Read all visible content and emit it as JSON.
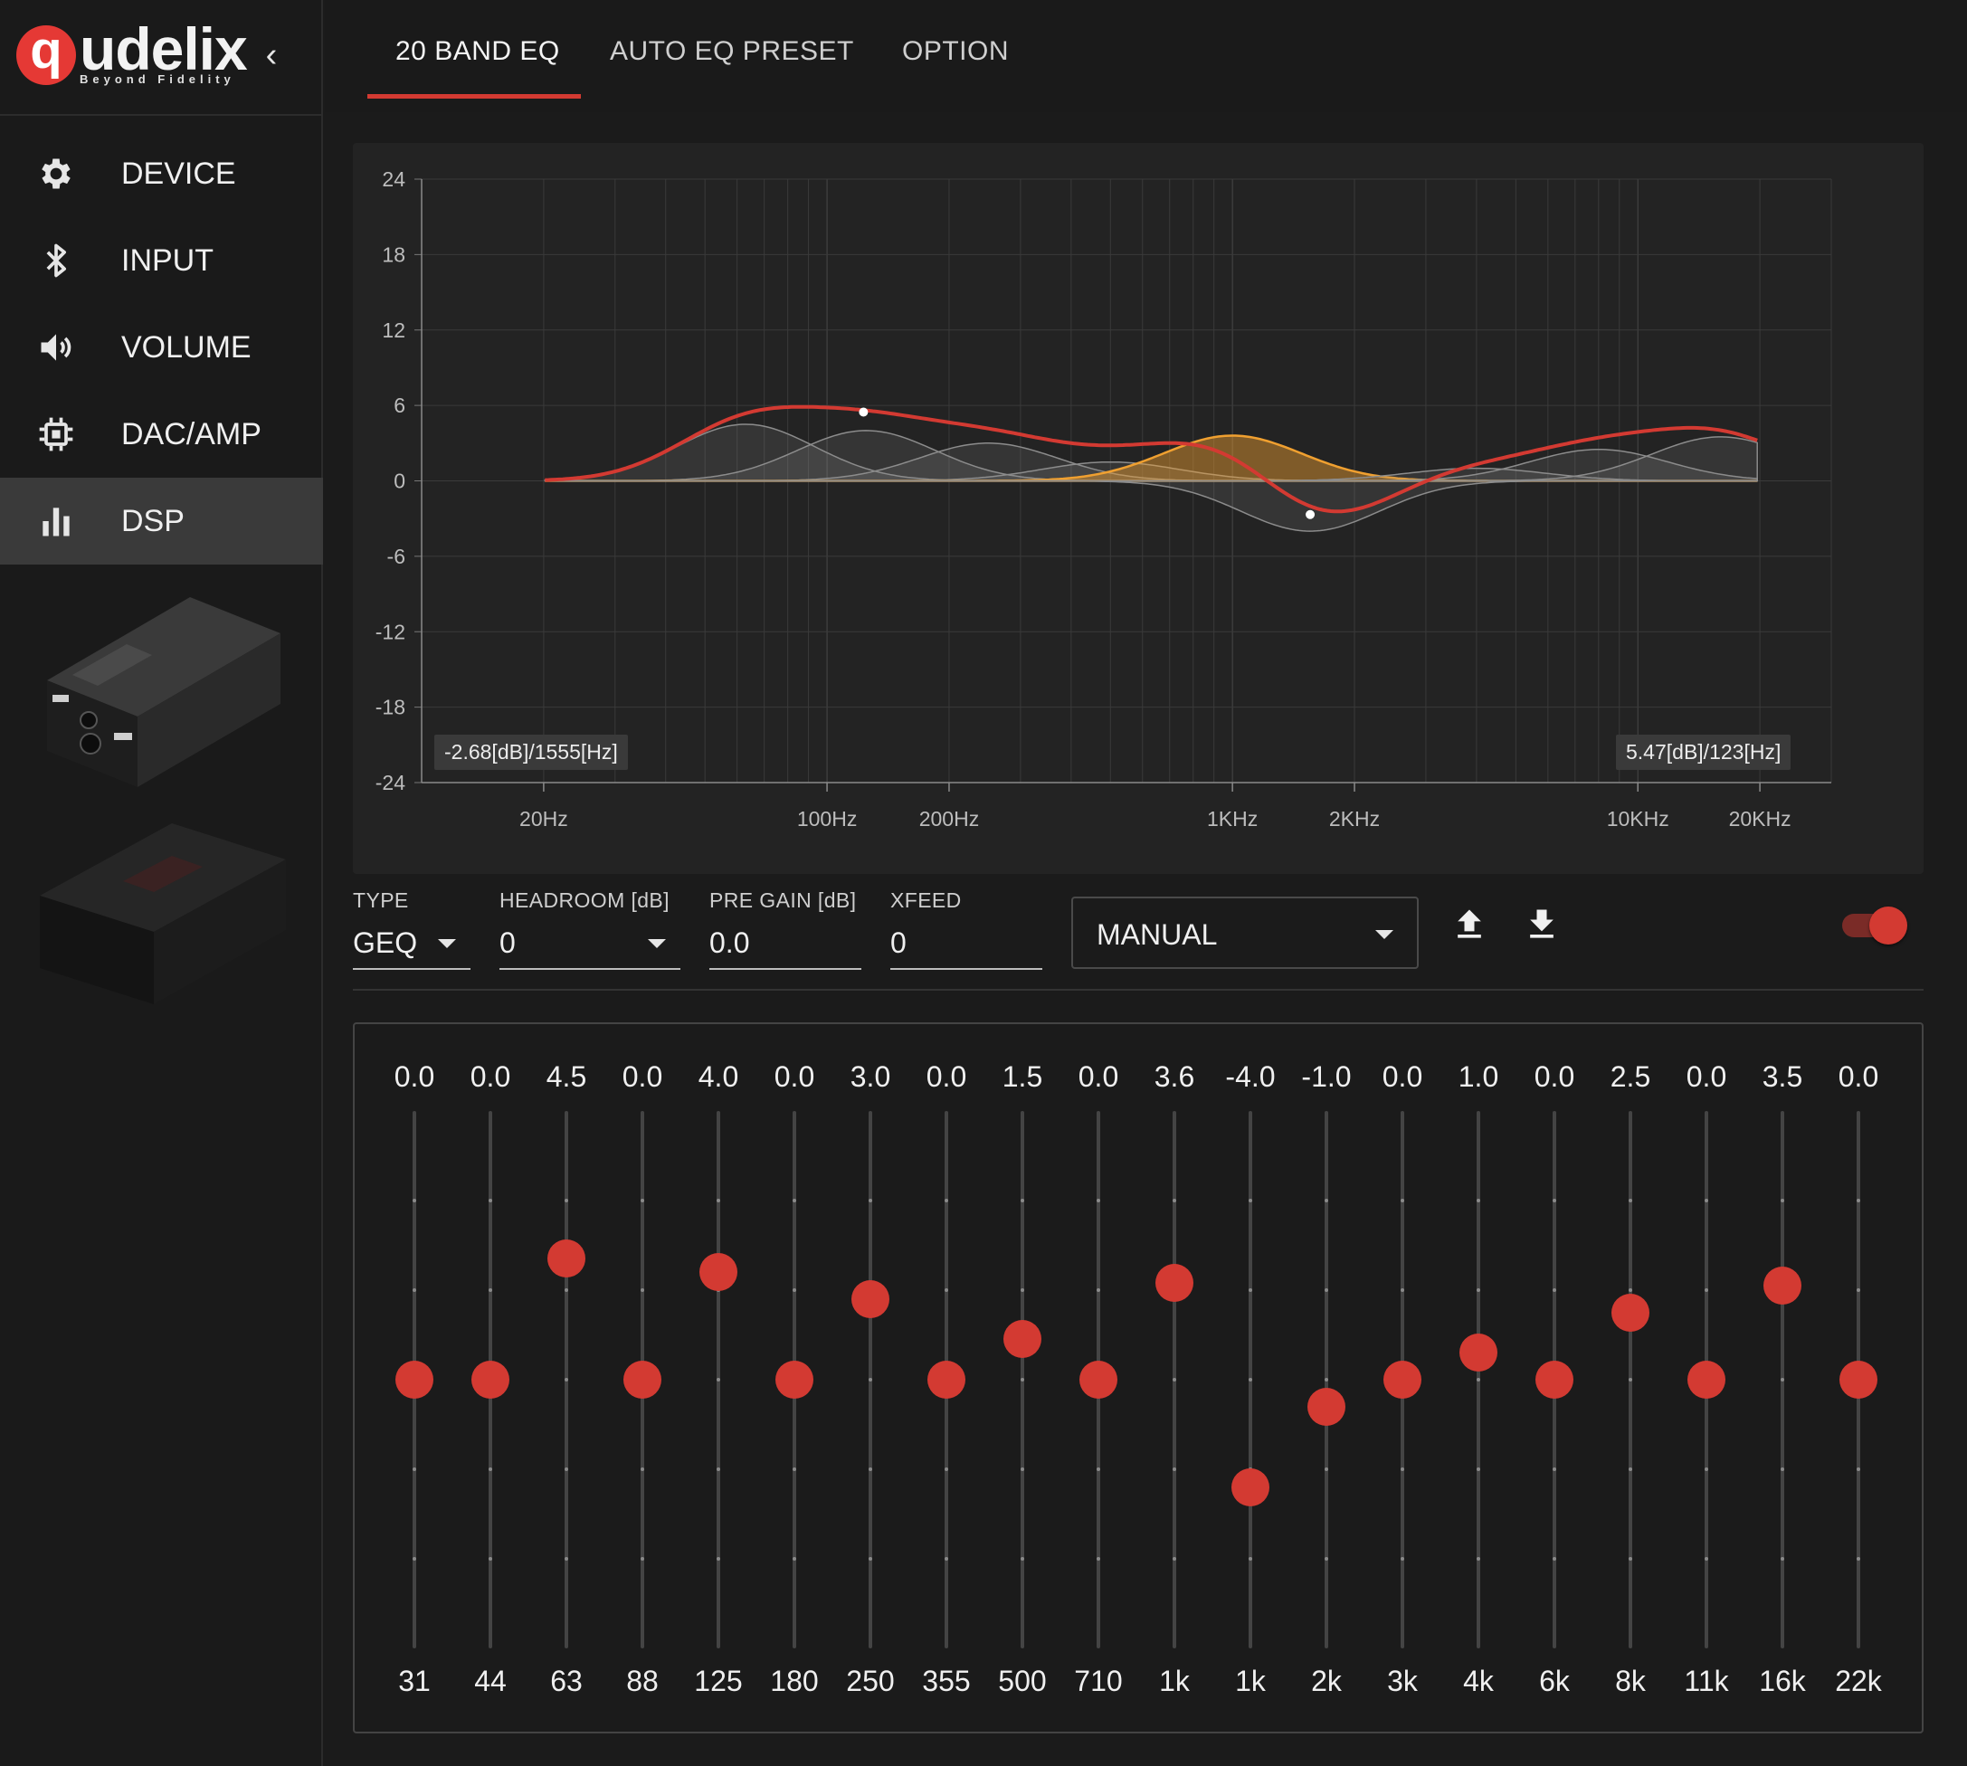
{
  "brand": {
    "logo_letter": "q",
    "logo_name": "udelix",
    "tagline": "Beyond Fidelity",
    "collapse_glyph": "‹"
  },
  "sidebar": {
    "items": [
      {
        "label": "DEVICE",
        "icon": "gear-icon"
      },
      {
        "label": "INPUT",
        "icon": "bluetooth-icon"
      },
      {
        "label": "VOLUME",
        "icon": "speaker-icon"
      },
      {
        "label": "DAC/AMP",
        "icon": "chip-icon"
      },
      {
        "label": "DSP",
        "icon": "bar-chart-icon",
        "active": true
      }
    ]
  },
  "tabs": [
    {
      "label": "20 BAND EQ",
      "active": true
    },
    {
      "label": "AUTO EQ PRESET"
    },
    {
      "label": "OPTION"
    }
  ],
  "chart": {
    "readout_left": "-2.68[dB]/1555[Hz]",
    "readout_right": "5.47[dB]/123[Hz]",
    "colors": {
      "response": "#d33a32",
      "selected_band": "#f0a030",
      "band": "#8c8c8c",
      "grid": "#3a3a3a"
    }
  },
  "chart_data": {
    "type": "line",
    "x_scale": "log",
    "xlim": [
      10,
      30000
    ],
    "ylim": [
      -24,
      24
    ],
    "y_ticks": [
      "24",
      "18",
      "12",
      "6",
      "0",
      "-6",
      "-12",
      "-18",
      "-24"
    ],
    "x_ticks": [
      {
        "label": "20Hz",
        "value": 20
      },
      {
        "label": "100Hz",
        "value": 100
      },
      {
        "label": "200Hz",
        "value": 200
      },
      {
        "label": "1KHz",
        "value": 1000
      },
      {
        "label": "2KHz",
        "value": 2000
      },
      {
        "label": "10KHz",
        "value": 10000
      },
      {
        "label": "20KHz",
        "value": 20000
      }
    ],
    "bands": [
      {
        "freq": 63,
        "gain": 4.5
      },
      {
        "freq": 125,
        "gain": 4.0
      },
      {
        "freq": 250,
        "gain": 3.0
      },
      {
        "freq": 500,
        "gain": 1.5
      },
      {
        "freq": 1000,
        "gain": 3.6,
        "selected": true
      },
      {
        "freq": 1555,
        "gain": -4.0
      },
      {
        "freq": 4000,
        "gain": 1.0
      },
      {
        "freq": 8000,
        "gain": 2.5
      },
      {
        "freq": 16000,
        "gain": 3.5
      }
    ],
    "markers": [
      {
        "freq": 123,
        "gain": 5.47
      },
      {
        "freq": 1555,
        "gain": -2.68
      }
    ]
  },
  "controls": {
    "type": {
      "label": "TYPE",
      "value": "GEQ"
    },
    "headroom": {
      "label": "HEADROOM [dB]",
      "value": "0"
    },
    "pregain": {
      "label": "PRE GAIN [dB]",
      "value": "0.0"
    },
    "xfeed": {
      "label": "XFEED",
      "value": "0"
    },
    "preset": {
      "value": "MANUAL"
    },
    "upload_icon": "upload-icon",
    "download_icon": "download-icon",
    "eq_enabled": true
  },
  "eq": {
    "range": [
      -10,
      10
    ],
    "bands": [
      {
        "value": "0.0",
        "freq": "31"
      },
      {
        "value": "0.0",
        "freq": "44"
      },
      {
        "value": "4.5",
        "freq": "63"
      },
      {
        "value": "0.0",
        "freq": "88"
      },
      {
        "value": "4.0",
        "freq": "125"
      },
      {
        "value": "0.0",
        "freq": "180"
      },
      {
        "value": "3.0",
        "freq": "250"
      },
      {
        "value": "0.0",
        "freq": "355"
      },
      {
        "value": "1.5",
        "freq": "500"
      },
      {
        "value": "0.0",
        "freq": "710"
      },
      {
        "value": "3.6",
        "freq": "1k"
      },
      {
        "value": "-4.0",
        "freq": "1k"
      },
      {
        "value": "-1.0",
        "freq": "2k"
      },
      {
        "value": "0.0",
        "freq": "3k"
      },
      {
        "value": "1.0",
        "freq": "4k"
      },
      {
        "value": "0.0",
        "freq": "6k"
      },
      {
        "value": "2.5",
        "freq": "8k"
      },
      {
        "value": "0.0",
        "freq": "11k"
      },
      {
        "value": "3.5",
        "freq": "16k"
      },
      {
        "value": "0.0",
        "freq": "22k"
      }
    ]
  }
}
